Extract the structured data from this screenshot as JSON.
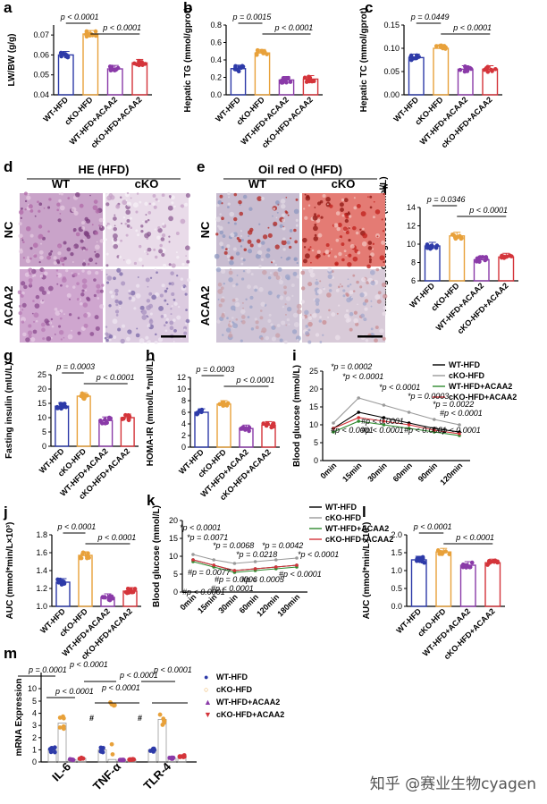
{
  "panels": [
    "a",
    "b",
    "c",
    "d",
    "e",
    "f",
    "g",
    "h",
    "i",
    "j",
    "k",
    "l",
    "m"
  ],
  "groups": [
    "WT-HFD",
    "cKO-HFD",
    "WT-HFD+ACAA2",
    "cKO-HFD+ACAA2"
  ],
  "group_colors": [
    "#2d3aa8",
    "#e8a13a",
    "#8a3aa8",
    "#d4343a"
  ],
  "histology": {
    "d": {
      "title": "HE (HFD)",
      "cols": [
        "WT",
        "cKO"
      ],
      "rows": [
        "NC",
        "ACAA2"
      ]
    },
    "e": {
      "title": "Oil red O (HFD)",
      "cols": [
        "WT",
        "cKO"
      ],
      "rows": [
        "NC",
        "ACAA2"
      ]
    }
  },
  "chart_data": [
    {
      "panel": "a",
      "type": "bar",
      "ylabel": "LW/BW (g/g)",
      "yticks": [
        "0.04",
        "0.05",
        "0.06",
        "0.07"
      ],
      "ylim": [
        0.04,
        0.075
      ],
      "categories": [
        "WT-HFD",
        "cKO-HFD",
        "WT-HFD+ACAA2",
        "cKO-HFD+ACAA2"
      ],
      "values": [
        0.06,
        0.0705,
        0.053,
        0.056
      ],
      "annotations": [
        "p < 0.0001",
        "p < 0.0001"
      ]
    },
    {
      "panel": "b",
      "type": "bar",
      "ylabel": "Hepatic TG (mmol/gprot)",
      "yticks": [
        "0.0",
        "0.2",
        "0.4",
        "0.6",
        "0.8"
      ],
      "ylim": [
        0,
        0.8
      ],
      "categories": [
        "WT-HFD",
        "cKO-HFD",
        "WT-HFD+ACAA2",
        "cKO-HFD+ACAA2"
      ],
      "values": [
        0.3,
        0.48,
        0.17,
        0.18
      ],
      "annotations": [
        "p = 0.0015",
        "p < 0.0001"
      ]
    },
    {
      "panel": "c",
      "type": "bar",
      "ylabel": "Hepatic TC (mmol/gprot)",
      "yticks": [
        "0.00",
        "0.05",
        "0.10",
        "0.15"
      ],
      "ylim": [
        0,
        0.15
      ],
      "categories": [
        "WT-HFD",
        "cKO-HFD",
        "WT-HFD+ACAA2",
        "cKO-HFD+ACAA2"
      ],
      "values": [
        0.08,
        0.1,
        0.055,
        0.055
      ],
      "annotations": [
        "p = 0.0449",
        "p < 0.0001"
      ]
    },
    {
      "panel": "f",
      "type": "bar",
      "ylabel": "Fasting blood glucose (mmol/L)",
      "yticks": [
        "6",
        "8",
        "10",
        "12",
        "14"
      ],
      "ylim": [
        6,
        14
      ],
      "categories": [
        "WT-HFD",
        "cKO-HFD",
        "WT-HFD+ACAA2",
        "cKO-HFD+ACAA2"
      ],
      "values": [
        9.8,
        10.9,
        8.3,
        8.6
      ],
      "annotations": [
        "p = 0.0346",
        "p < 0.0001"
      ]
    },
    {
      "panel": "g",
      "type": "bar",
      "ylabel": "Fasting insulin (mIU/L)",
      "yticks": [
        "0",
        "5",
        "10",
        "15",
        "20",
        "25"
      ],
      "ylim": [
        0,
        25
      ],
      "categories": [
        "WT-HFD",
        "cKO-HFD",
        "WT-HFD+ACAA2",
        "cKO-HFD+ACAA2"
      ],
      "values": [
        14,
        17.5,
        9,
        10
      ],
      "annotations": [
        "p = 0.0003",
        "p < 0.0001"
      ]
    },
    {
      "panel": "h",
      "type": "bar",
      "ylabel": "HOMA-IR (mmol/L*mIU/L)",
      "yticks": [
        "0",
        "2",
        "4",
        "6",
        "8",
        "10",
        "12"
      ],
      "ylim": [
        0,
        12
      ],
      "categories": [
        "WT-HFD",
        "cKO-HFD",
        "WT-HFD+ACAA2",
        "cKO-HFD+ACAA2"
      ],
      "values": [
        6,
        7.4,
        3.2,
        3.8
      ],
      "annotations": [
        "p = 0.0003",
        "p < 0.0001"
      ]
    },
    {
      "panel": "i",
      "type": "line",
      "ylabel": "Blood glucose (mmol/L)",
      "yticks": [
        "0",
        "5",
        "10",
        "15",
        "20",
        "25"
      ],
      "ylim": [
        0,
        25
      ],
      "categories": [
        "0min",
        "15min",
        "30min",
        "60min",
        "90min",
        "120min"
      ],
      "series": [
        {
          "name": "WT-HFD",
          "values": [
            9,
            13.5,
            12,
            10.5,
            9,
            8
          ]
        },
        {
          "name": "cKO-HFD",
          "values": [
            10.5,
            17.5,
            15.5,
            13.5,
            11.5,
            10
          ]
        },
        {
          "name": "WT-HFD+ACAA2",
          "values": [
            8,
            11,
            10,
            9,
            8,
            7
          ]
        },
        {
          "name": "cKO-HFD+ACAA2",
          "values": [
            9,
            12,
            11,
            10,
            8.5,
            7.5
          ]
        }
      ],
      "legend": "top-right",
      "annotations": [
        "*p = 0.0002",
        "*p < 0.0001",
        "*p < 0.0001",
        "*p = 0.0003",
        "*p = 0.0022",
        "#p < 0.0001",
        "#p < 0.0001",
        "#p < 0.0001",
        "#p < 0.0001",
        "#p < 0.0001",
        "#p < 0.0001"
      ]
    },
    {
      "panel": "j",
      "type": "bar",
      "ylabel": "AUC (mmol*min/L×10³)",
      "yticks": [
        "1.0",
        "1.2",
        "1.4",
        "1.6",
        "1.8"
      ],
      "ylim": [
        1.0,
        1.8
      ],
      "categories": [
        "WT-HFD",
        "cKO-HFD",
        "WT-HFD+ACAA2",
        "cKO-HFD+ACAA2"
      ],
      "values": [
        1.27,
        1.57,
        1.1,
        1.17
      ],
      "annotations": [
        "p < 0.0001",
        "p < 0.0001"
      ]
    },
    {
      "panel": "k",
      "type": "line",
      "ylabel": "Blood glucose (mmol/L)",
      "yticks": [
        "0",
        "5",
        "10",
        "15",
        "20"
      ],
      "ylim": [
        0,
        20
      ],
      "categories": [
        "0min",
        "15min",
        "30min",
        "60min",
        "120min",
        "180min"
      ],
      "series": [
        {
          "name": "WT-HFD",
          "values": [
            9,
            7.5,
            6,
            6.5,
            7,
            7.5
          ]
        },
        {
          "name": "cKO-HFD",
          "values": [
            10.5,
            9,
            8,
            8.5,
            9,
            9.5
          ]
        },
        {
          "name": "WT-HFD+ACAA2",
          "values": [
            8.5,
            7,
            5.5,
            6,
            6.5,
            7
          ]
        },
        {
          "name": "cKO-HFD+ACAA2",
          "values": [
            9,
            7.5,
            6,
            6.5,
            7,
            7.5
          ]
        }
      ],
      "legend": "top-right",
      "annotations": [
        "*p < 0.0001",
        "*p = 0.0071",
        "*p = 0.0068",
        "*p = 0.0218",
        "*p = 0.0042",
        "*p < 0.0001",
        "#p = 0.0077",
        "#p = 0.0006",
        "#p = 0.0005",
        "#p < 0.0001",
        "#p < 0.0001",
        "#p < 0.0001"
      ]
    },
    {
      "panel": "l",
      "type": "bar",
      "ylabel": "AUC (mmol*min/L×10³)",
      "yticks": [
        "0.0",
        "0.5",
        "1.0",
        "1.5",
        "2.0"
      ],
      "ylim": [
        0,
        2
      ],
      "categories": [
        "WT-HFD",
        "cKO-HFD",
        "WT-HFD+ACAA2",
        "cKO-HFD+ACAA2"
      ],
      "values": [
        1.3,
        1.52,
        1.15,
        1.22
      ],
      "annotations": [
        "p < 0.0001",
        "p < 0.0001"
      ]
    },
    {
      "panel": "m",
      "type": "bar",
      "ylabel": "mRNA Expression",
      "yticks": [
        "0",
        "1",
        "2",
        "3",
        "4",
        "5",
        "10"
      ],
      "ylim": [
        0,
        11
      ],
      "categories": [
        "IL-6",
        "TNF-α",
        "TLR-4"
      ],
      "series": [
        {
          "name": "WT-HFD",
          "values": [
            1,
            1,
            1
          ]
        },
        {
          "name": "cKO-HFD",
          "values": [
            3.2,
            5.6,
            3.5
          ]
        },
        {
          "name": "WT-HFD+ACAA2",
          "values": [
            0.2,
            0.15,
            0.3
          ]
        },
        {
          "name": "cKO-HFD+ACAA2",
          "values": [
            0.3,
            0.2,
            0.5
          ]
        }
      ],
      "legend": "right",
      "annotations": [
        "p = 0.0001",
        "p < 0.0001",
        "p < 0.0001",
        "p < 0.0001",
        "p < 0.0001",
        "p < 0.0001",
        "#",
        "#"
      ]
    }
  ],
  "watermark": "知乎 @赛业生物cyagen"
}
